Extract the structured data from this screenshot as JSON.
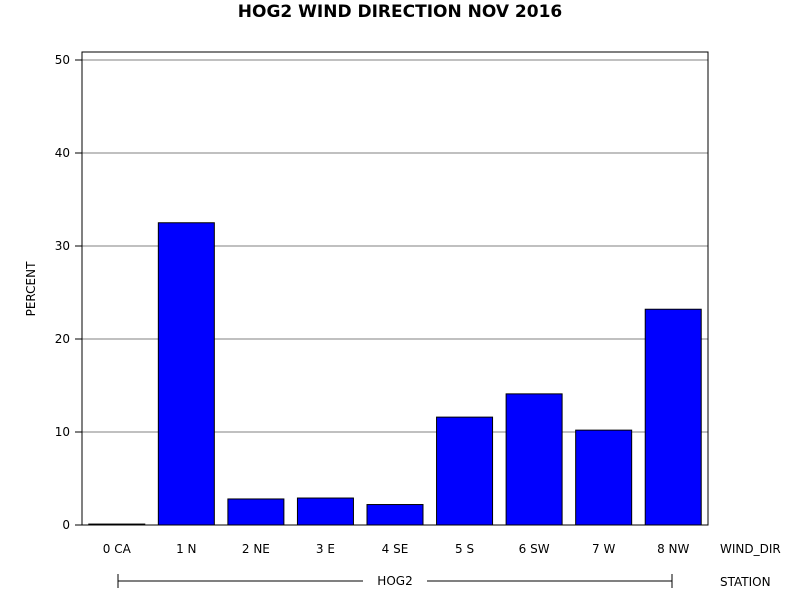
{
  "chart_data": {
    "type": "bar",
    "title": "HOG2 WIND DIRECTION NOV 2016",
    "ylabel": "PERCENT",
    "xlabel": "WIND_DIR",
    "group_axis_label": "STATION",
    "group_label": "HOG2",
    "categories": [
      "0 CA",
      "1 N",
      "2 NE",
      "3 E",
      "4 SE",
      "5 S",
      "6 SW",
      "7 W",
      "8 NW"
    ],
    "values": [
      0.1,
      32.5,
      2.8,
      2.9,
      2.2,
      11.6,
      14.1,
      10.2,
      23.2
    ],
    "ylim": [
      0,
      50
    ],
    "yticks": [
      "0",
      "10",
      "20",
      "30",
      "40",
      "50"
    ],
    "grid": true,
    "bar_color": "#0000ff"
  }
}
